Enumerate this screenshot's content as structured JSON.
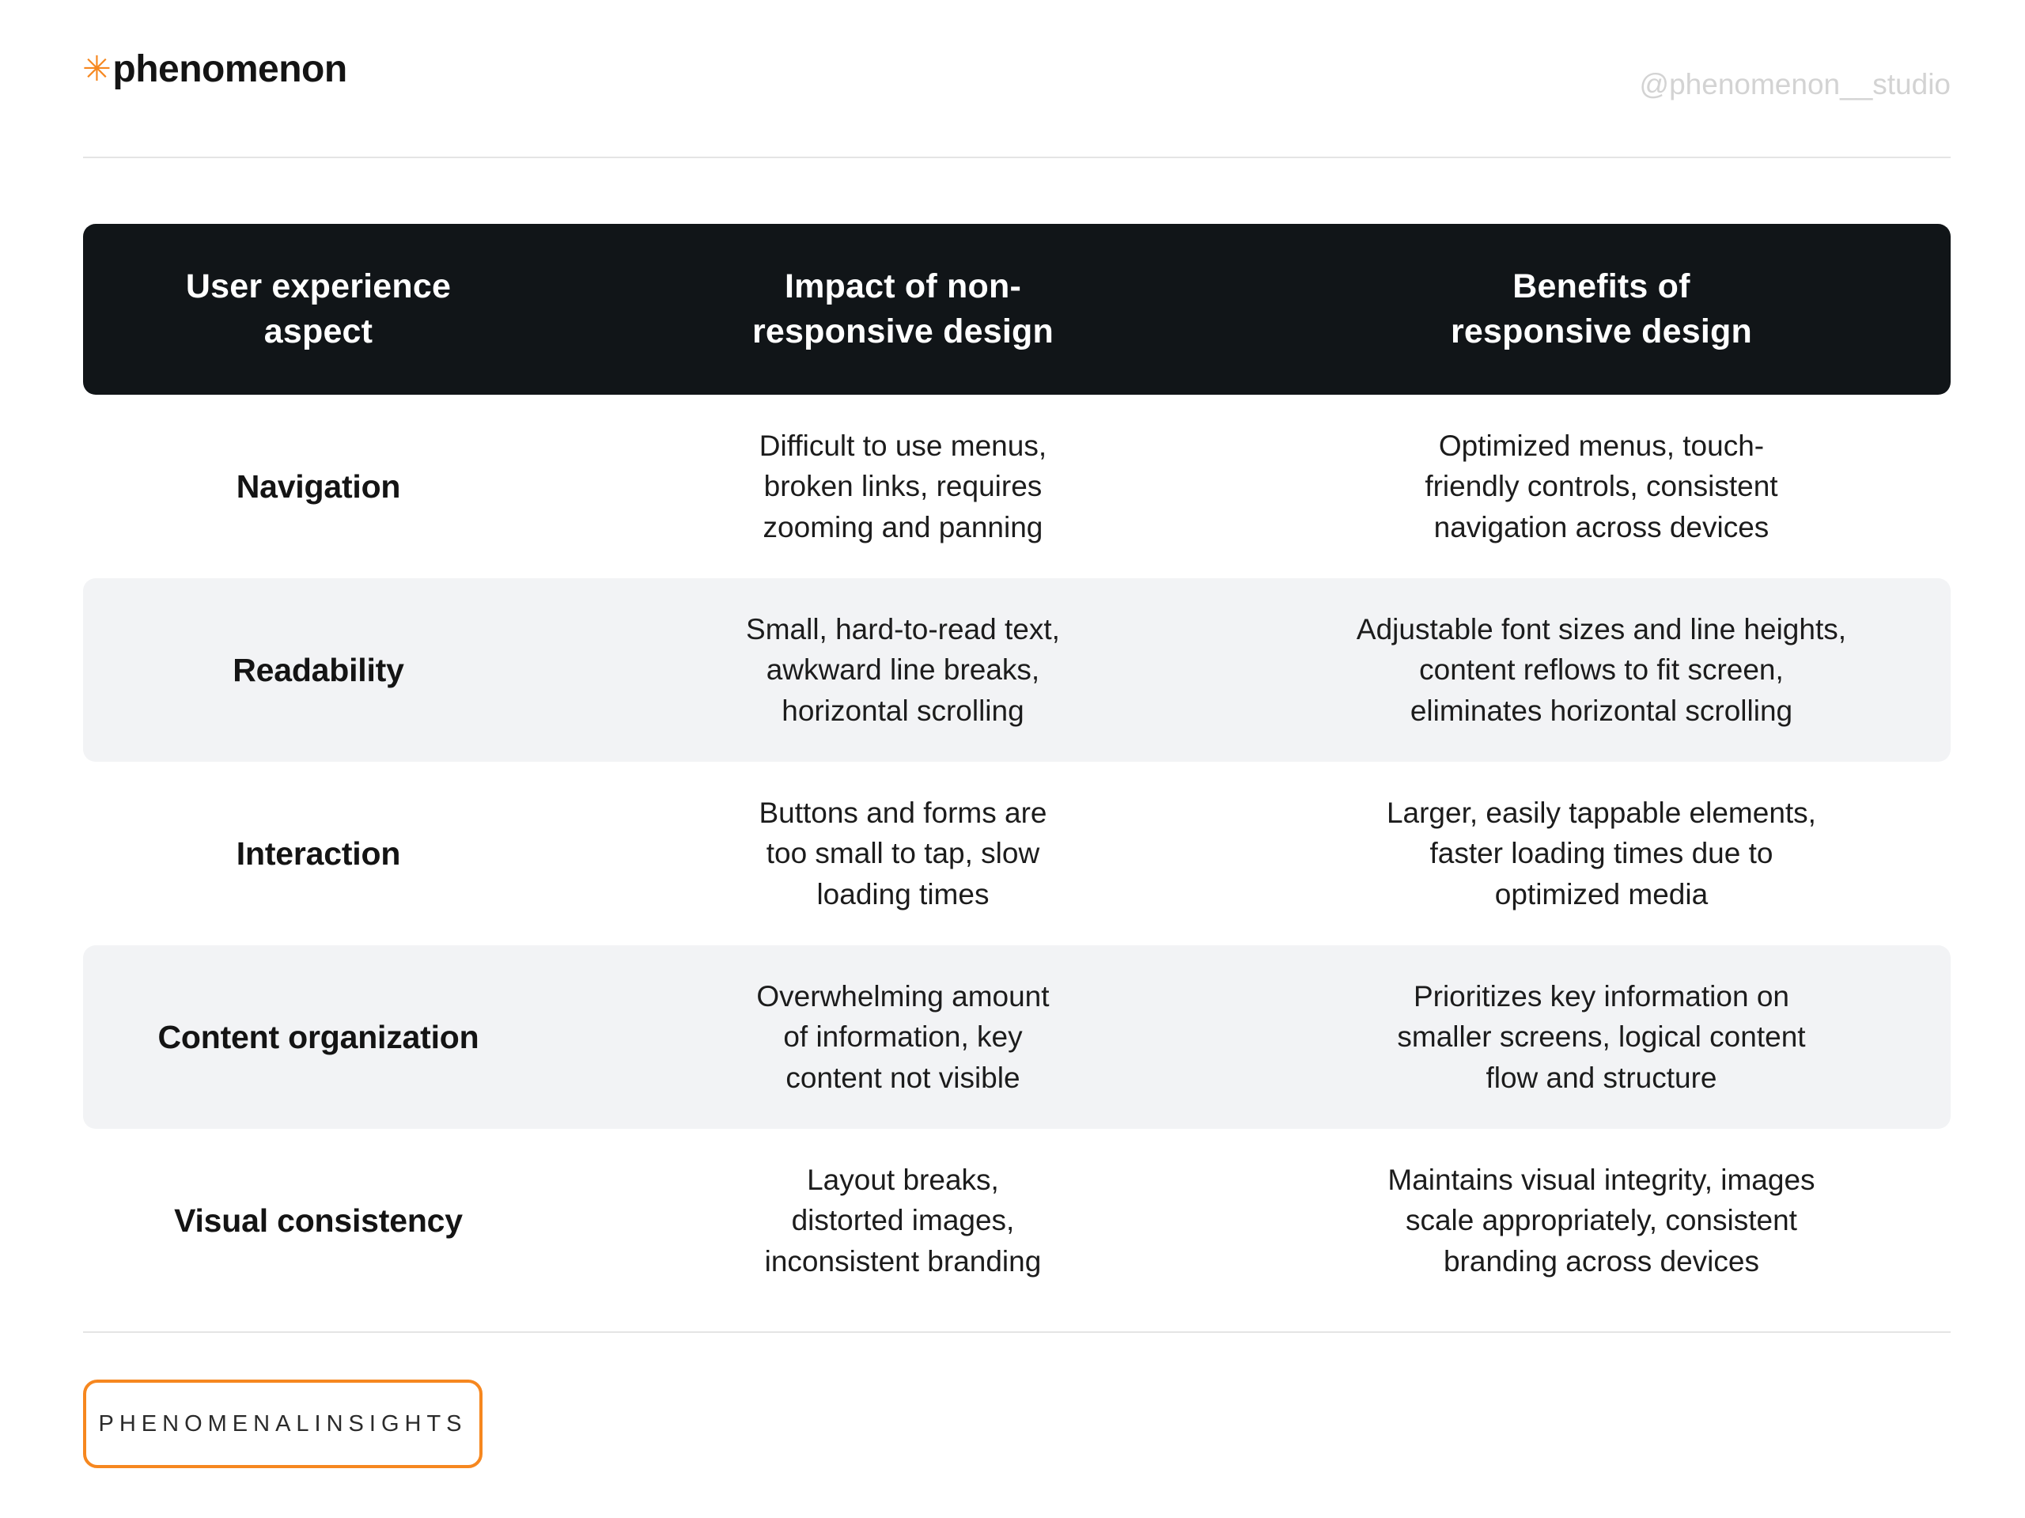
{
  "brand": {
    "logo_asterisk": "✳",
    "logo_text": "phenomenon",
    "handle": "@phenomenon__studio"
  },
  "colors": {
    "accent_orange": "#F6871F",
    "header_bg": "#111518",
    "row_alt_bg": "#F2F3F5",
    "divider": "#E4E4E4",
    "handle_text": "#D3D3D3"
  },
  "table": {
    "headers": [
      "User experience\naspect",
      "Impact of non-\nresponsive design",
      "Benefits of\nresponsive design"
    ],
    "rows": [
      {
        "aspect": "Navigation",
        "impact": "Difficult to use menus,\nbroken links, requires\nzooming and panning",
        "benefit": "Optimized menus, touch-\nfriendly controls, consistent\nnavigation across devices"
      },
      {
        "aspect": "Readability",
        "impact": "Small, hard-to-read text,\nawkward line breaks,\nhorizontal scrolling",
        "benefit": "Adjustable font sizes and line heights,\ncontent reflows to fit screen,\neliminates horizontal scrolling"
      },
      {
        "aspect": "Interaction",
        "impact": "Buttons and forms are\ntoo small to tap, slow\nloading times",
        "benefit": "Larger, easily tappable elements,\nfaster loading times due to\noptimized media"
      },
      {
        "aspect": "Content organization",
        "impact": "Overwhelming amount\nof information, key\ncontent not visible",
        "benefit": "Prioritizes key information on\nsmaller screens, logical content\nflow and structure"
      },
      {
        "aspect": "Visual consistency",
        "impact": "Layout breaks,\ndistorted images,\ninconsistent branding",
        "benefit": "Maintains visual integrity, images\nscale appropriately, consistent\nbranding across devices"
      }
    ]
  },
  "footer": {
    "badge_label": "PHENOMENALINSIGHTS"
  }
}
